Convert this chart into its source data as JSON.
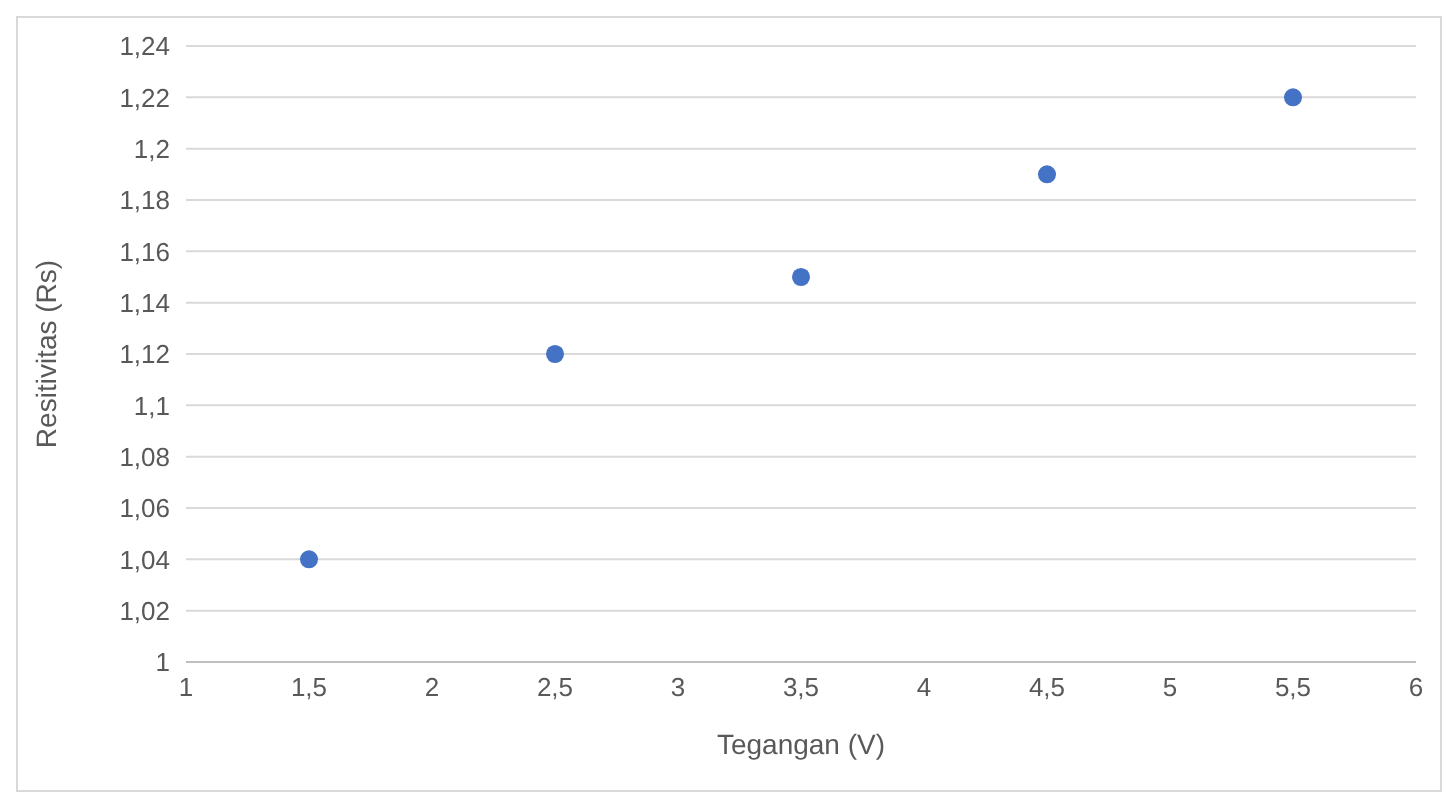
{
  "chart_data": {
    "type": "scatter",
    "xlabel": "Tegangan (V)",
    "ylabel": "Resitivitas (Rs)",
    "x": [
      1.5,
      2.5,
      3.5,
      4.5,
      5.5
    ],
    "series": [
      {
        "color": "#4472c4",
        "values": [
          1.04,
          1.12,
          1.15,
          1.19,
          1.22
        ]
      }
    ],
    "xlim": [
      1,
      6
    ],
    "xticks": [
      1,
      {
        "value": 1.5,
        "label": "1,5"
      },
      2,
      {
        "value": 2.5,
        "label": "2,5"
      },
      3,
      {
        "value": 3.5,
        "label": "3,5"
      },
      4,
      {
        "value": 4.5,
        "label": "4,5"
      },
      5,
      {
        "value": 5.5,
        "label": "5,5"
      },
      6
    ],
    "ylim": [
      1,
      1.24
    ],
    "yticks": [
      1,
      {
        "value": 1.02,
        "label": "1,02"
      },
      {
        "value": 1.04,
        "label": "1,04"
      },
      {
        "value": 1.06,
        "label": "1,06"
      },
      {
        "value": 1.08,
        "label": "1,08"
      },
      {
        "value": 1.1,
        "label": "1,1"
      },
      {
        "value": 1.12,
        "label": "1,12"
      },
      {
        "value": 1.14,
        "label": "1,14"
      },
      {
        "value": 1.16,
        "label": "1,16"
      },
      {
        "value": 1.18,
        "label": "1,18"
      },
      {
        "value": 1.2,
        "label": "1,2"
      },
      {
        "value": 1.22,
        "label": "1,22"
      },
      {
        "value": 1.24,
        "label": "1,24"
      }
    ],
    "grid": "y",
    "marker": "circle"
  }
}
